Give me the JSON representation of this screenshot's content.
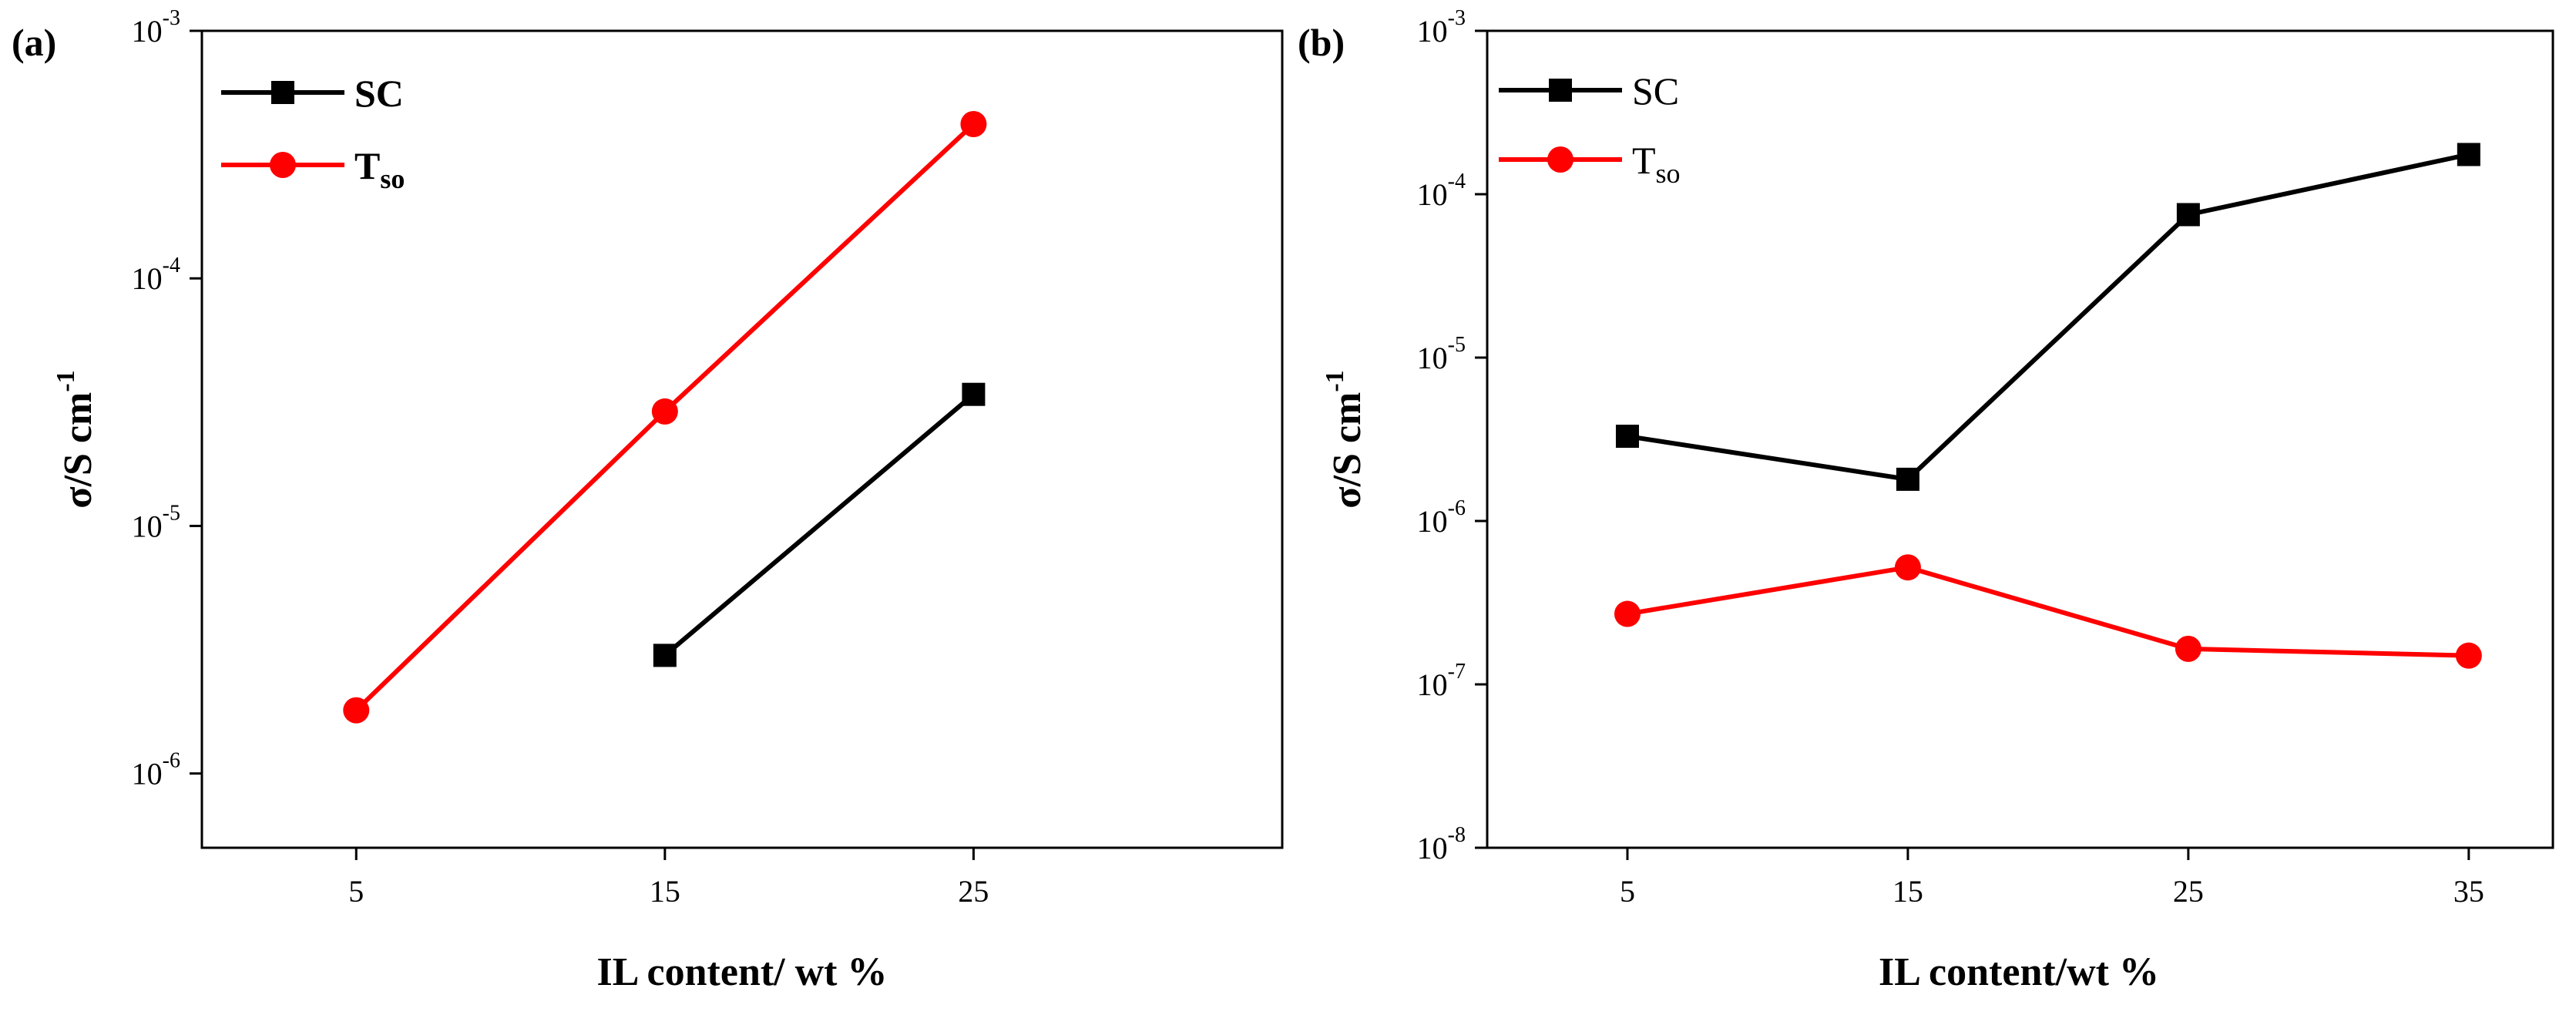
{
  "panels": [
    {
      "label": "(a)",
      "chart_data": {
        "type": "line",
        "yscale": "log",
        "xlabel": "IL content/ wt %",
        "ylabel_main": "σ/S cm",
        "ylabel_sup": "-1",
        "xlim": [
          0,
          35
        ],
        "ylim_exp": [
          -6.3,
          -3
        ],
        "x_ticks": [
          5,
          15,
          25
        ],
        "y_ticks_exp": [
          -6,
          -5,
          -4,
          -3
        ],
        "legend_position": "top-left",
        "series": [
          {
            "name": "SC",
            "name_sub": "",
            "color": "#000000",
            "marker": "square",
            "x": [
              15,
              25
            ],
            "y": [
              3e-06,
              3.4e-05
            ]
          },
          {
            "name": "T",
            "name_sub": "so",
            "color": "#ff0000",
            "marker": "circle",
            "x": [
              5,
              15,
              25
            ],
            "y": [
              1.8e-06,
              2.9e-05,
              0.00042
            ]
          }
        ]
      }
    },
    {
      "label": "(b)",
      "chart_data": {
        "type": "line",
        "yscale": "log",
        "xlabel": "IL content/wt %",
        "ylabel_main": "σ/S cm",
        "ylabel_sup": "-1",
        "xlim": [
          0,
          38
        ],
        "ylim_exp": [
          -8,
          -3
        ],
        "x_ticks": [
          5,
          15,
          25,
          35
        ],
        "y_ticks_exp": [
          -8,
          -7,
          -6,
          -5,
          -4,
          -3
        ],
        "legend_position": "top-left",
        "series": [
          {
            "name": "SC",
            "name_sub": "",
            "color": "#000000",
            "marker": "square",
            "x": [
              5,
              15,
              25,
              35
            ],
            "y": [
              3.3e-06,
              1.8e-06,
              7.5e-05,
              0.000175
            ]
          },
          {
            "name": "T",
            "name_sub": "so",
            "color": "#ff0000",
            "marker": "circle",
            "x": [
              5,
              15,
              25,
              35
            ],
            "y": [
              2.7e-07,
              5.2e-07,
              1.65e-07,
              1.5e-07
            ]
          }
        ]
      }
    }
  ]
}
